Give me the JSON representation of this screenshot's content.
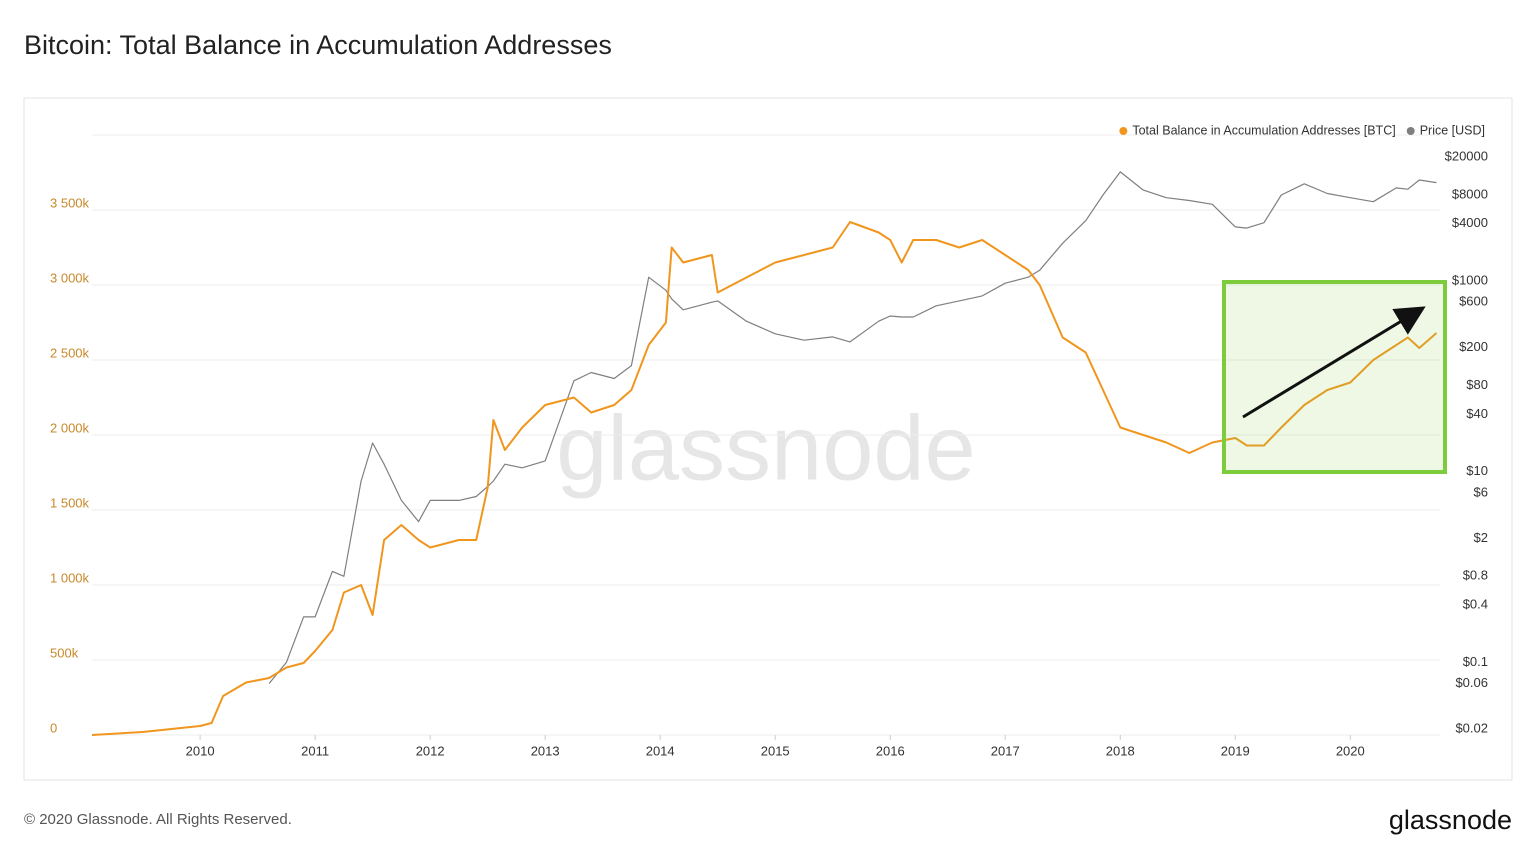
{
  "chart_data": {
    "type": "line",
    "title": "Bitcoin: Total Balance in Accumulation Addresses",
    "watermark": "glassnode",
    "footer": "© 2020 Glassnode. All Rights Reserved.",
    "brand": "glassnode",
    "legend": "top-right",
    "grid": true,
    "x": [
      2009.06,
      2009.5,
      2010.0,
      2010.1,
      2010.2,
      2010.4,
      2010.6,
      2010.75,
      2010.9,
      2011.0,
      2011.15,
      2011.25,
      2011.4,
      2011.5,
      2011.6,
      2011.75,
      2011.9,
      2012.0,
      2012.25,
      2012.4,
      2012.5,
      2012.55,
      2012.65,
      2012.8,
      2013.0,
      2013.25,
      2013.4,
      2013.6,
      2013.75,
      2013.9,
      2014.05,
      2014.1,
      2014.2,
      2014.45,
      2014.5,
      2014.75,
      2015.0,
      2015.25,
      2015.5,
      2015.65,
      2015.9,
      2016.0,
      2016.1,
      2016.2,
      2016.4,
      2016.6,
      2016.8,
      2017.0,
      2017.2,
      2017.3,
      2017.5,
      2017.7,
      2017.85,
      2018.0,
      2018.2,
      2018.4,
      2018.6,
      2018.8,
      2019.0,
      2019.1,
      2019.25,
      2019.4,
      2019.6,
      2019.8,
      2020.0,
      2020.2,
      2020.4,
      2020.5,
      2020.6,
      2020.75
    ],
    "xlim": [
      2009.06,
      2020.78
    ],
    "xticks": [
      2010,
      2011,
      2012,
      2013,
      2014,
      2015,
      2016,
      2017,
      2018,
      2019,
      2020
    ],
    "ylim": [
      0,
      4000000
    ],
    "yticks": [
      0,
      {
        "value": 500000,
        "label": "500k"
      },
      {
        "value": 1000000,
        "label": "1 000k"
      },
      {
        "value": 1500000,
        "label": "1 500k"
      },
      {
        "value": 2000000,
        "label": "2 000k"
      },
      {
        "value": 2500000,
        "label": "2 500k"
      },
      {
        "value": 3000000,
        "label": "3 000k"
      },
      {
        "value": 3500000,
        "label": "3 500k"
      }
    ],
    "y2lim": [
      0.0173,
      34100
    ],
    "y2log": true,
    "y2ticks": [
      {
        "value": 0.02,
        "label": "$0.02"
      },
      {
        "value": 0.06,
        "label": "$0.06"
      },
      {
        "value": 0.1,
        "label": "$0.1"
      },
      {
        "value": 0.4,
        "label": "$0.4"
      },
      {
        "value": 0.8,
        "label": "$0.8"
      },
      {
        "value": 2,
        "label": "$2"
      },
      {
        "value": 6,
        "label": "$6"
      },
      {
        "value": 10,
        "label": "$10"
      },
      {
        "value": 40,
        "label": "$40"
      },
      {
        "value": 80,
        "label": "$80"
      },
      {
        "value": 200,
        "label": "$200"
      },
      {
        "value": 600,
        "label": "$600"
      },
      {
        "value": 1000,
        "label": "$1000"
      },
      {
        "value": 4000,
        "label": "$4000"
      },
      {
        "value": 8000,
        "label": "$8000"
      },
      {
        "value": 20000,
        "label": "$20000"
      }
    ],
    "series": [
      {
        "name": "Total Balance in Accumulation Addresses [BTC]",
        "color": "#f0961e",
        "values": [
          0,
          20000,
          60000,
          80000,
          260000,
          350000,
          380000,
          450000,
          480000,
          560000,
          700000,
          950000,
          1000000,
          800000,
          1300000,
          1400000,
          1300000,
          1250000,
          1300000,
          1300000,
          1650000,
          2100000,
          1900000,
          2050000,
          2200000,
          2250000,
          2150000,
          2200000,
          2300000,
          2600000,
          2750000,
          3250000,
          3150000,
          3200000,
          2950000,
          3050000,
          3150000,
          3200000,
          3250000,
          3420000,
          3350000,
          3300000,
          3150000,
          3300000,
          3300000,
          3250000,
          3300000,
          3200000,
          3100000,
          3000000,
          2650000,
          2550000,
          2300000,
          2050000,
          2000000,
          1950000,
          1880000,
          1950000,
          1980000,
          1930000,
          1930000,
          2050000,
          2200000,
          2300000,
          2350000,
          2500000,
          2600000,
          2650000,
          2580000,
          2680000
        ]
      },
      {
        "name": "Price [USD]",
        "color": "#7f7f7f",
        "axis": "y2",
        "values": [
          null,
          null,
          null,
          null,
          null,
          null,
          0.06,
          0.1,
          0.3,
          0.3,
          0.9,
          0.8,
          8,
          20,
          12,
          5,
          3,
          5,
          5,
          5.5,
          7,
          8,
          12,
          11,
          13,
          90,
          110,
          95,
          130,
          1100,
          800,
          650,
          500,
          600,
          620,
          380,
          280,
          240,
          260,
          230,
          380,
          430,
          420,
          420,
          550,
          620,
          700,
          950,
          1100,
          1300,
          2500,
          4300,
          8000,
          14000,
          9000,
          7500,
          7000,
          6400,
          3700,
          3600,
          4100,
          8000,
          10500,
          8300,
          7500,
          6800,
          9500,
          9200,
          11500,
          10800
        ]
      }
    ]
  }
}
